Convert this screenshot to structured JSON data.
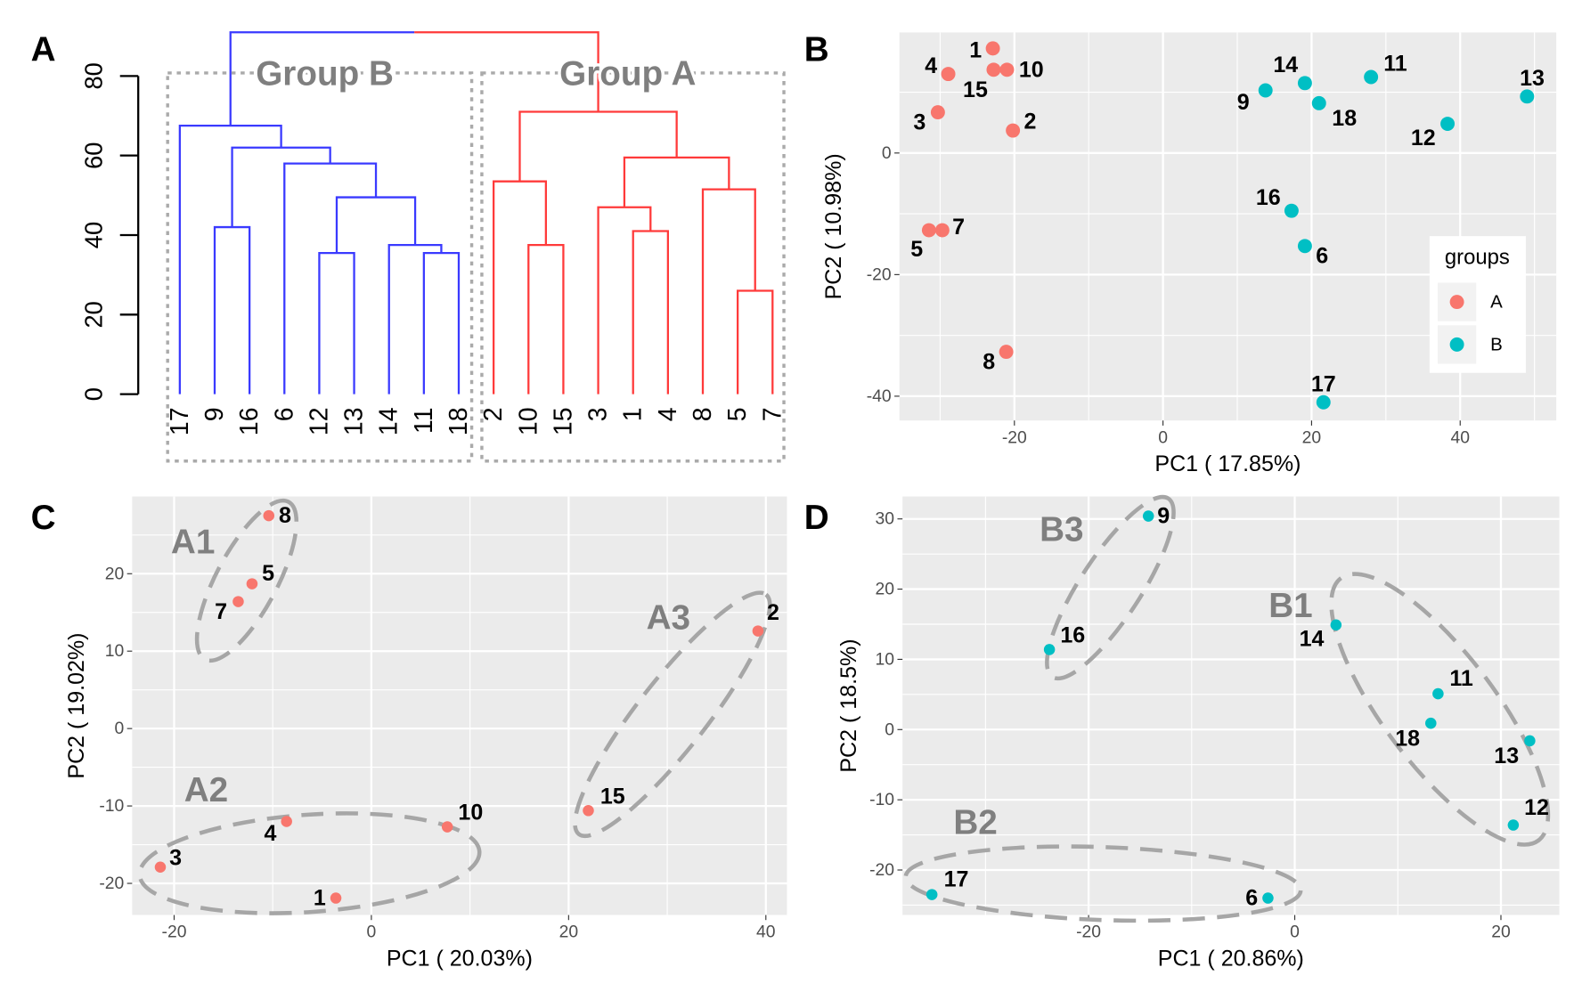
{
  "colors": {
    "group_A": "#F8766D",
    "group_B": "#00BFC4",
    "dendro_B": "#3A3AFF",
    "dendro_A": "#FF3A3A",
    "panel_bg": "#EBEBEB",
    "annotation": "#A6A6A6"
  },
  "chart_data": [
    {
      "panel": "A",
      "type": "dendrogram",
      "yticks": [
        0,
        20,
        40,
        60,
        80
      ],
      "ylim": [
        0,
        91
      ],
      "leaves": [
        "17",
        "9",
        "16",
        "6",
        "12",
        "13",
        "14",
        "11",
        "18",
        "2",
        "10",
        "15",
        "3",
        "1",
        "4",
        "8",
        "5",
        "7"
      ],
      "merges": [
        {
          "id": "m1",
          "children": [
            "9",
            "16"
          ],
          "height": 42
        },
        {
          "id": "m2",
          "children": [
            "12",
            "13"
          ],
          "height": 35.5
        },
        {
          "id": "m3",
          "children": [
            "11",
            "18"
          ],
          "height": 35.5
        },
        {
          "id": "m4",
          "children": [
            "14",
            "m3"
          ],
          "height": 37.5
        },
        {
          "id": "m5",
          "children": [
            "m2",
            "m4"
          ],
          "height": 49.5
        },
        {
          "id": "m6",
          "children": [
            "6",
            "m5"
          ],
          "height": 58
        },
        {
          "id": "m7",
          "children": [
            "m1",
            "m6"
          ],
          "height": 62
        },
        {
          "id": "m8",
          "children": [
            "17",
            "m7"
          ],
          "height": 67.5
        },
        {
          "id": "m9",
          "children": [
            "10",
            "15"
          ],
          "height": 37.5
        },
        {
          "id": "m10",
          "children": [
            "2",
            "m9"
          ],
          "height": 53.5
        },
        {
          "id": "m11",
          "children": [
            "1",
            "4"
          ],
          "height": 41
        },
        {
          "id": "m12",
          "children": [
            "3",
            "m11"
          ],
          "height": 47
        },
        {
          "id": "m13",
          "children": [
            "5",
            "7"
          ],
          "height": 26
        },
        {
          "id": "m14",
          "children": [
            "8",
            "m13"
          ],
          "height": 51.5
        },
        {
          "id": "m15",
          "children": [
            "m12",
            "m14"
          ],
          "height": 59.5
        },
        {
          "id": "m16",
          "children": [
            "m10",
            "m15"
          ],
          "height": 71
        },
        {
          "id": "root",
          "children": [
            "m8",
            "m16"
          ],
          "height": 91
        }
      ],
      "groups": [
        {
          "label": "Group B",
          "leaves": [
            "17",
            "9",
            "16",
            "6",
            "12",
            "13",
            "14",
            "11",
            "18"
          ]
        },
        {
          "label": "Group A",
          "leaves": [
            "2",
            "10",
            "15",
            "3",
            "1",
            "4",
            "8",
            "5",
            "7"
          ]
        }
      ]
    },
    {
      "panel": "B",
      "type": "scatter",
      "xlabel": "PC1 ( 17.85%)",
      "ylabel": "PC2 ( 10.98%)",
      "xticks": [
        -20,
        0,
        20,
        40
      ],
      "yticks": [
        0,
        -20,
        -40
      ],
      "legend": {
        "title": "groups",
        "entries": [
          "A",
          "B"
        ],
        "position": "right"
      },
      "points": [
        {
          "id": "1",
          "x": -22.9,
          "y": 17.2,
          "group": "A"
        },
        {
          "id": "15",
          "x": -22.8,
          "y": 13.7,
          "group": "A"
        },
        {
          "id": "10",
          "x": -21.0,
          "y": 13.7,
          "group": "A"
        },
        {
          "id": "4",
          "x": -28.9,
          "y": 13.0,
          "group": "A"
        },
        {
          "id": "3",
          "x": -30.3,
          "y": 6.7,
          "group": "A"
        },
        {
          "id": "2",
          "x": -20.2,
          "y": 3.7,
          "group": "A"
        },
        {
          "id": "5",
          "x": -31.5,
          "y": -12.7,
          "group": "A"
        },
        {
          "id": "7",
          "x": -29.7,
          "y": -12.7,
          "group": "A"
        },
        {
          "id": "8",
          "x": -21.1,
          "y": -32.7,
          "group": "A"
        },
        {
          "id": "9",
          "x": 13.8,
          "y": 10.3,
          "group": "B"
        },
        {
          "id": "14",
          "x": 19.1,
          "y": 11.5,
          "group": "B"
        },
        {
          "id": "18",
          "x": 21.0,
          "y": 8.2,
          "group": "B"
        },
        {
          "id": "11",
          "x": 28.0,
          "y": 12.5,
          "group": "B"
        },
        {
          "id": "13",
          "x": 49.0,
          "y": 9.3,
          "group": "B"
        },
        {
          "id": "12",
          "x": 38.3,
          "y": 4.8,
          "group": "B"
        },
        {
          "id": "16",
          "x": 17.3,
          "y": -9.5,
          "group": "B"
        },
        {
          "id": "6",
          "x": 19.1,
          "y": -15.3,
          "group": "B"
        },
        {
          "id": "17",
          "x": 21.6,
          "y": -41.0,
          "group": "B"
        }
      ]
    },
    {
      "panel": "C",
      "type": "scatter",
      "xlabel": "PC1 ( 20.03%)",
      "ylabel": "PC2 ( 19.02%)",
      "xticks": [
        -20,
        0,
        20,
        40
      ],
      "yticks": [
        20,
        10,
        0,
        -10,
        -20
      ],
      "clusters": [
        "A1",
        "A2",
        "A3"
      ],
      "points": [
        {
          "id": "8",
          "x": -10.4,
          "y": 27.5,
          "group": "A"
        },
        {
          "id": "5",
          "x": -12.1,
          "y": 18.7,
          "group": "A"
        },
        {
          "id": "7",
          "x": -13.5,
          "y": 16.4,
          "group": "A"
        },
        {
          "id": "2",
          "x": 39.2,
          "y": 12.6,
          "group": "A"
        },
        {
          "id": "15",
          "x": 22.0,
          "y": -10.6,
          "group": "A"
        },
        {
          "id": "10",
          "x": 7.7,
          "y": -12.7,
          "group": "A"
        },
        {
          "id": "4",
          "x": -8.6,
          "y": -12.0,
          "group": "A"
        },
        {
          "id": "3",
          "x": -21.4,
          "y": -17.9,
          "group": "A"
        },
        {
          "id": "1",
          "x": -3.6,
          "y": -21.9,
          "group": "A"
        }
      ]
    },
    {
      "panel": "D",
      "type": "scatter",
      "xlabel": "PC1 ( 20.86%)",
      "ylabel": "PC2 ( 18.5%)",
      "xticks": [
        -20,
        0,
        20
      ],
      "yticks": [
        30,
        20,
        10,
        0,
        -10,
        -20
      ],
      "clusters": [
        "B3",
        "B1",
        "B2"
      ],
      "points": [
        {
          "id": "9",
          "x": -14.2,
          "y": 30.4,
          "group": "B"
        },
        {
          "id": "16",
          "x": -23.8,
          "y": 11.4,
          "group": "B"
        },
        {
          "id": "14",
          "x": 4.0,
          "y": 14.9,
          "group": "B"
        },
        {
          "id": "11",
          "x": 13.9,
          "y": 5.1,
          "group": "B"
        },
        {
          "id": "18",
          "x": 13.2,
          "y": 0.9,
          "group": "B"
        },
        {
          "id": "13",
          "x": 22.8,
          "y": -1.6,
          "group": "B"
        },
        {
          "id": "12",
          "x": 21.2,
          "y": -13.6,
          "group": "B"
        },
        {
          "id": "17",
          "x": -35.2,
          "y": -23.5,
          "group": "B"
        },
        {
          "id": "6",
          "x": -2.6,
          "y": -24.0,
          "group": "B"
        }
      ]
    }
  ]
}
